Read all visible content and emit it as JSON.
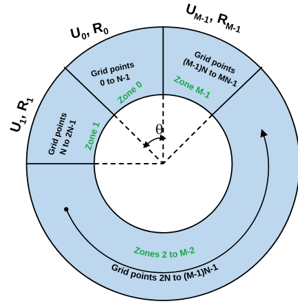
{
  "colors": {
    "ring_fill": "#bcd7ee",
    "outline": "#000000",
    "zone_text": "#1aa64b"
  },
  "labels": {
    "u0_r0": {
      "u": "U",
      "u_sub": "0",
      "sep": ", ",
      "r": "R",
      "r_sub": "0"
    },
    "u1_r1": {
      "u": "U",
      "u_sub": "1",
      "sep": ", ",
      "r": "R",
      "r_sub": "1"
    },
    "um1_rm1": {
      "u": "U",
      "u_sub": "M-1",
      "sep": ", ",
      "r": "R",
      "r_sub": "M-1"
    }
  },
  "zones": {
    "zone0": "Zone 0",
    "zone1": "Zone 1",
    "zone_m1": "Zone M-1",
    "zones_2_to_m2": "Zones 2 to M-2"
  },
  "grid_points": {
    "zone0": {
      "line1": "Grid points",
      "line2": "0 to N-1"
    },
    "zone1": {
      "line1": "Grid points",
      "line2": "N to 2N-1"
    },
    "zone_m1": {
      "line1": "Grid points",
      "line2": "(M-1)N to MN-1"
    },
    "rest": "Grid points 2N to (M-1)N-1"
  },
  "angle": {
    "symbol": "θ"
  }
}
